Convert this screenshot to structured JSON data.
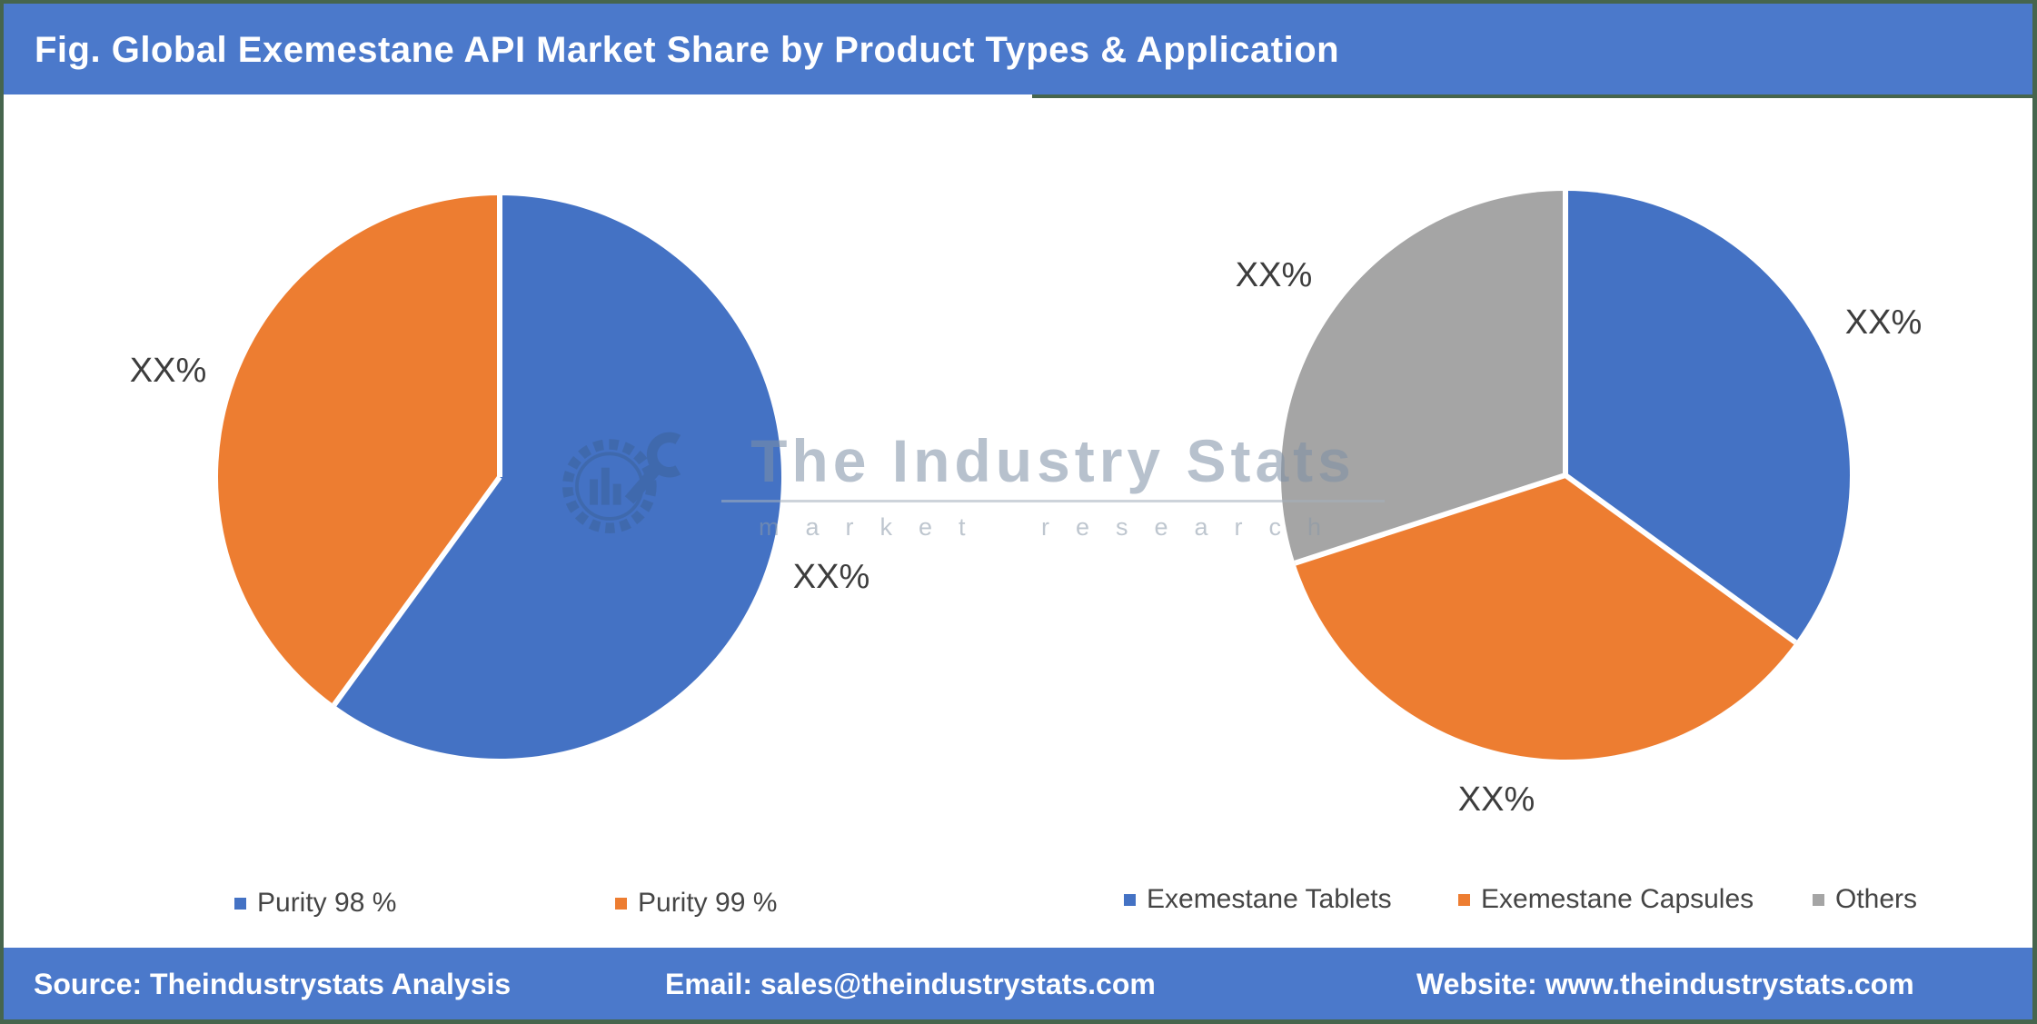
{
  "header": {
    "title": "Fig. Global Exemestane API Market Share by Product Types & Application"
  },
  "watermark": {
    "title": "The Industry Stats",
    "subtitle": "market research"
  },
  "chart_data": [
    {
      "type": "pie",
      "name": "Product Types",
      "categories": [
        "Purity 98 %",
        "Purity 99 %"
      ],
      "values": [
        60,
        40
      ],
      "value_labels": [
        "XX%",
        "XX%"
      ],
      "colors": [
        "#4472C4",
        "#ED7D31"
      ],
      "legend_position": "bottom"
    },
    {
      "type": "pie",
      "name": "Application",
      "categories": [
        "Exemestane Tablets",
        "Exemestane Capsules",
        "Others"
      ],
      "values": [
        35,
        35,
        30
      ],
      "value_labels": [
        "XX%",
        "XX%",
        "XX%"
      ],
      "colors": [
        "#4472C4",
        "#ED7D31",
        "#A5A5A5"
      ],
      "legend_position": "bottom"
    }
  ],
  "footer": {
    "source": "Source: Theindustrystats Analysis",
    "email": "Email: sales@theindustrystats.com",
    "website": "Website: www.theindustrystats.com"
  },
  "colors": {
    "bar_blue": "#4B79CB",
    "border_green": "#46654D",
    "pie_blue": "#4472C4",
    "pie_orange": "#ED7D31",
    "pie_gray": "#A5A5A5"
  }
}
